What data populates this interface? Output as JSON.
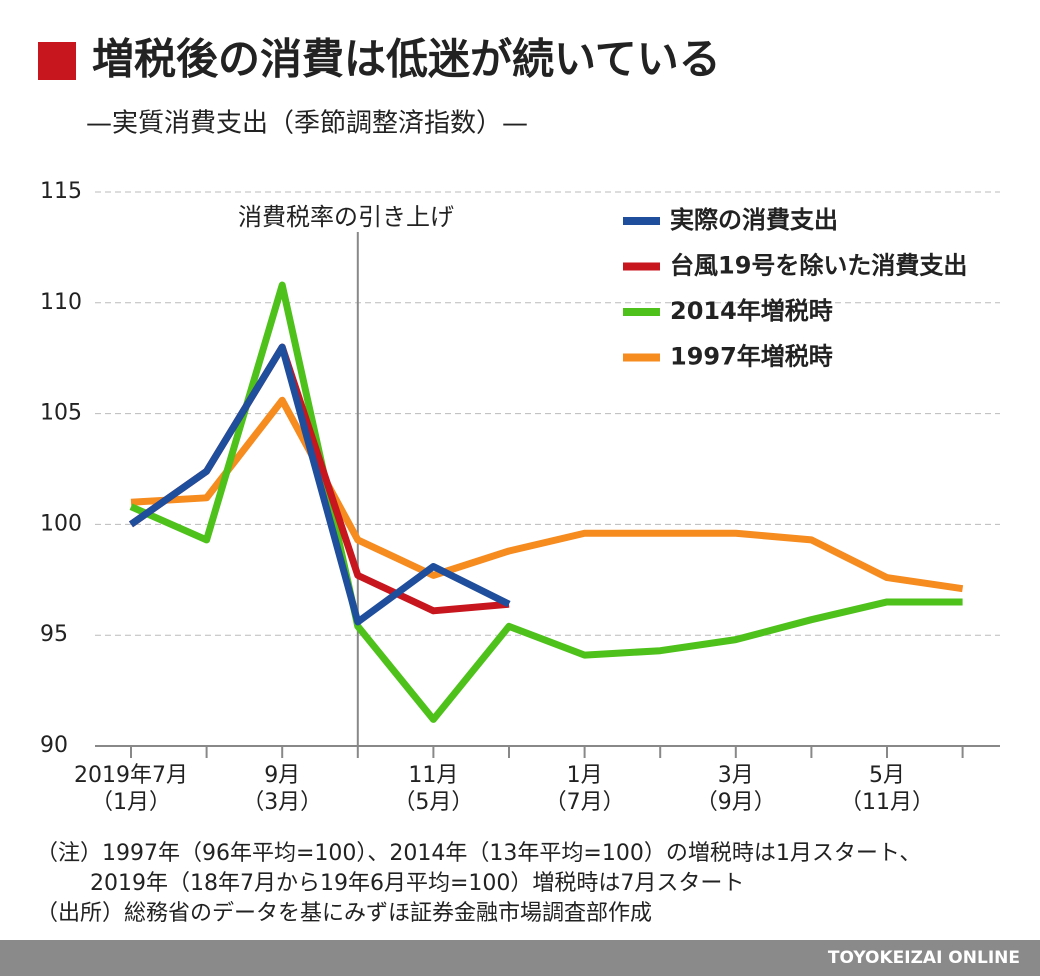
{
  "chart_data": {
    "type": "line",
    "title": "増税後の消費は低迷が続いている",
    "subtitle": "—実質消費支出（季節調整済指数）—",
    "annotation": "消費税率の引き上げ",
    "categories": [
      "2019年7月",
      null,
      "9月",
      null,
      "11月",
      null,
      "1月",
      null,
      "3月",
      null,
      "5月",
      null
    ],
    "category_notes": [
      "（1月）",
      null,
      "（3月）",
      null,
      "（5月）",
      null,
      "（7月）",
      null,
      "（9月）",
      null,
      "（11月）",
      null
    ],
    "ylim": [
      90,
      115
    ],
    "yticks": [
      90,
      95,
      100,
      105,
      110,
      115
    ],
    "grid": true,
    "legend": "top-right",
    "series": [
      {
        "name": "実際の消費支出",
        "color": "#1f4e9c",
        "values": [
          100.0,
          102.4,
          108.0,
          95.6,
          98.1,
          96.4,
          null,
          null,
          null,
          null,
          null,
          null
        ]
      },
      {
        "name": "台風19号を除いた消費支出",
        "color": "#c8161e",
        "values": [
          100.0,
          102.4,
          108.0,
          97.7,
          96.1,
          96.4,
          null,
          null,
          null,
          null,
          null,
          null
        ]
      },
      {
        "name": "2014年増税時",
        "color": "#4ec21a",
        "values": [
          100.8,
          99.3,
          110.8,
          95.4,
          91.2,
          95.4,
          94.1,
          94.3,
          94.8,
          95.7,
          96.5,
          96.5
        ]
      },
      {
        "name": "1997年増税時",
        "color": "#f68b1f",
        "values": [
          101.0,
          101.2,
          105.6,
          99.3,
          97.7,
          98.8,
          99.6,
          99.6,
          99.6,
          99.3,
          97.6,
          97.1
        ]
      }
    ],
    "notes": [
      "（注）1997年（96年平均=100）、2014年（13年平均=100）の増税時は1月スタート、",
      "2019年（18年7月から19年6月平均=100）増税時は7月スタート",
      "（出所）総務省のデータを基にみずほ証券金融市場調査部作成"
    ],
    "source": "TOYOKEIZAI ONLINE"
  }
}
